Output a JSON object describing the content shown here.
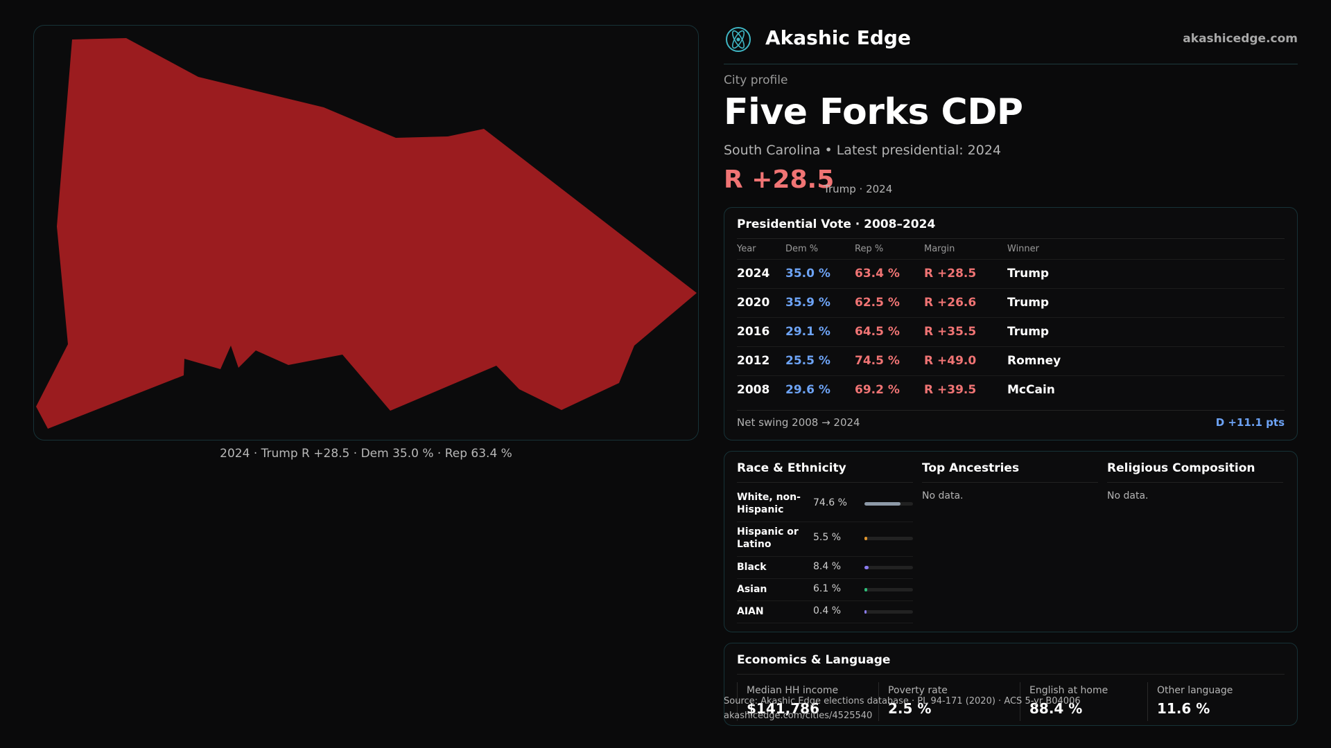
{
  "map": {
    "caption": "2024 · Trump R +28.5 · Dem 35.0 % · Rep 63.4 %",
    "fill_color": "#9b1c1f"
  },
  "brand": {
    "name": "Akashic Edge",
    "url": "akashicedge.com",
    "logo_icon": "atom-icon"
  },
  "header": {
    "eyebrow": "City profile",
    "title": "Five Forks CDP",
    "subtitle": "South Carolina • Latest presidential: 2024",
    "margin": "R +28.5",
    "margin_note": "Trump · 2024"
  },
  "presidential": {
    "title": "Presidential Vote · 2008–2024",
    "columns": [
      "Year",
      "Dem %",
      "Rep %",
      "Margin",
      "Winner"
    ],
    "rows": [
      {
        "year": "2024",
        "dem": "35.0 %",
        "rep": "63.4 %",
        "margin": "R +28.5",
        "winner": "Trump"
      },
      {
        "year": "2020",
        "dem": "35.9 %",
        "rep": "62.5 %",
        "margin": "R +26.6",
        "winner": "Trump"
      },
      {
        "year": "2016",
        "dem": "29.1 %",
        "rep": "64.5 %",
        "margin": "R +35.5",
        "winner": "Trump"
      },
      {
        "year": "2012",
        "dem": "25.5 %",
        "rep": "74.5 %",
        "margin": "R +49.0",
        "winner": "Romney"
      },
      {
        "year": "2008",
        "dem": "29.6 %",
        "rep": "69.2 %",
        "margin": "R +39.5",
        "winner": "McCain"
      }
    ],
    "swing_label": "Net swing 2008 → 2024",
    "swing_value": "D +11.1 pts"
  },
  "race": {
    "title": "Race & Ethnicity",
    "items": [
      {
        "label": "White, non-Hispanic",
        "pct": "74.6 %",
        "value": 74.6,
        "color": "#8e9aa8"
      },
      {
        "label": "Hispanic or Latino",
        "pct": "5.5 %",
        "value": 5.5,
        "color": "#e0962e"
      },
      {
        "label": "Black",
        "pct": "8.4 %",
        "value": 8.4,
        "color": "#8b7cf0"
      },
      {
        "label": "Asian",
        "pct": "6.1 %",
        "value": 6.1,
        "color": "#2fbf7a"
      },
      {
        "label": "AIAN",
        "pct": "0.4 %",
        "value": 0.4,
        "color": "#8b7cf0"
      }
    ]
  },
  "ancestries": {
    "title": "Top Ancestries",
    "empty": "No data."
  },
  "religion": {
    "title": "Religious Composition",
    "empty": "No data."
  },
  "economics": {
    "title": "Economics & Language",
    "stats": [
      {
        "label": "Median HH income",
        "value": "$141,786"
      },
      {
        "label": "Poverty rate",
        "value": "2.5 %"
      },
      {
        "label": "English at home",
        "value": "88.4 %"
      },
      {
        "label": "Other language",
        "value": "11.6 %"
      }
    ]
  },
  "footer": {
    "source": "Source: Akashic Edge elections database · PL 94-171 (2020) · ACS 5-yr B04006",
    "url": "akashicedge.com/cities/4525540"
  }
}
